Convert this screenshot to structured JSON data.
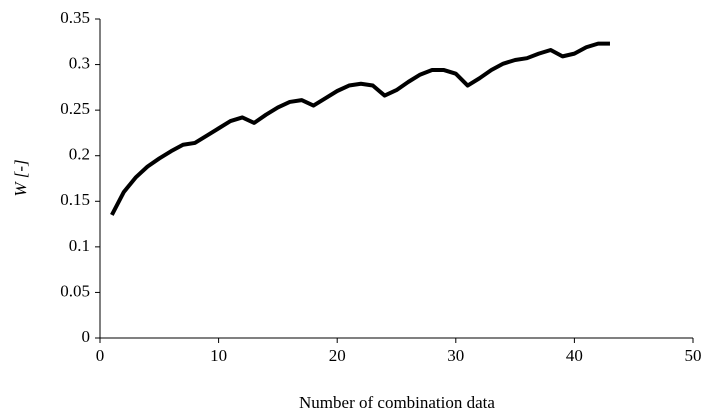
{
  "chart_data": {
    "type": "line",
    "x_label": "Number of combination  data",
    "y_label": "W [-]",
    "x": [
      1,
      2,
      3,
      4,
      5,
      6,
      7,
      8,
      9,
      10,
      11,
      12,
      13,
      14,
      15,
      16,
      17,
      18,
      19,
      20,
      21,
      22,
      23,
      24,
      25,
      26,
      27,
      28,
      29,
      30,
      31,
      32,
      33,
      34,
      35,
      36,
      37,
      38,
      39,
      40,
      41,
      42,
      43
    ],
    "values": [
      0.135,
      0.16,
      0.176,
      0.188,
      0.197,
      0.205,
      0.212,
      0.214,
      0.222,
      0.23,
      0.238,
      0.242,
      0.236,
      0.245,
      0.253,
      0.259,
      0.261,
      0.255,
      0.263,
      0.271,
      0.277,
      0.279,
      0.277,
      0.266,
      0.272,
      0.281,
      0.289,
      0.294,
      0.294,
      0.29,
      0.277,
      0.285,
      0.294,
      0.301,
      0.305,
      0.307,
      0.312,
      0.316,
      0.309,
      0.312,
      0.319,
      0.323,
      0.323
    ],
    "color": "#000000",
    "xlim": [
      0,
      50
    ],
    "xticks": [
      0,
      10,
      20,
      30,
      40,
      50
    ],
    "ylim": [
      0,
      0.35
    ],
    "yticks": [
      0,
      0.05,
      0.1,
      0.15,
      0.2,
      0.25,
      0.3,
      0.35
    ],
    "grid": false
  }
}
